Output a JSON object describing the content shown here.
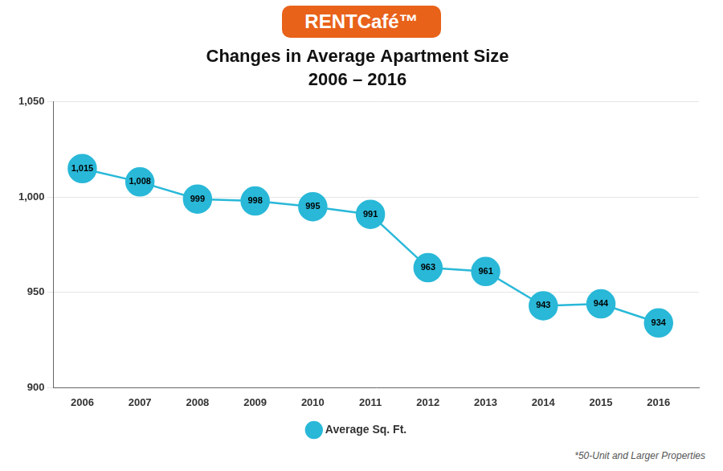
{
  "chart_data": {
    "type": "line",
    "title": "Changes in Average Apartment Size",
    "subtitle": "2006 – 2016",
    "annotations": [
      "RENTCafé™",
      "*50-Unit and Larger Properties"
    ],
    "x": [
      2006,
      2007,
      2008,
      2009,
      2010,
      2011,
      2012,
      2013,
      2014,
      2015,
      2016
    ],
    "series": [
      {
        "name": "Average Sq. Ft.",
        "color": "#29B8D8",
        "values": [
          1015,
          1008,
          999,
          998,
          995,
          991,
          963,
          961,
          943,
          944,
          934
        ],
        "value_labels": [
          "1,015",
          "1,008",
          "999",
          "998",
          "995",
          "991",
          "963",
          "961",
          "943",
          "944",
          "934"
        ]
      }
    ],
    "xlim": [
      2005.5,
      2016.7
    ],
    "xticks": [
      2006,
      2007,
      2008,
      2009,
      2010,
      2011,
      2012,
      2013,
      2014,
      2015,
      2016
    ],
    "ylim": [
      900,
      1050
    ],
    "yticks": [
      900,
      950,
      {
        "value": 1000,
        "label": "1,000"
      },
      {
        "value": 1050,
        "label": "1,050"
      }
    ],
    "grid": true,
    "legend": "bottom",
    "marker": "circle",
    "data_labels": true
  }
}
